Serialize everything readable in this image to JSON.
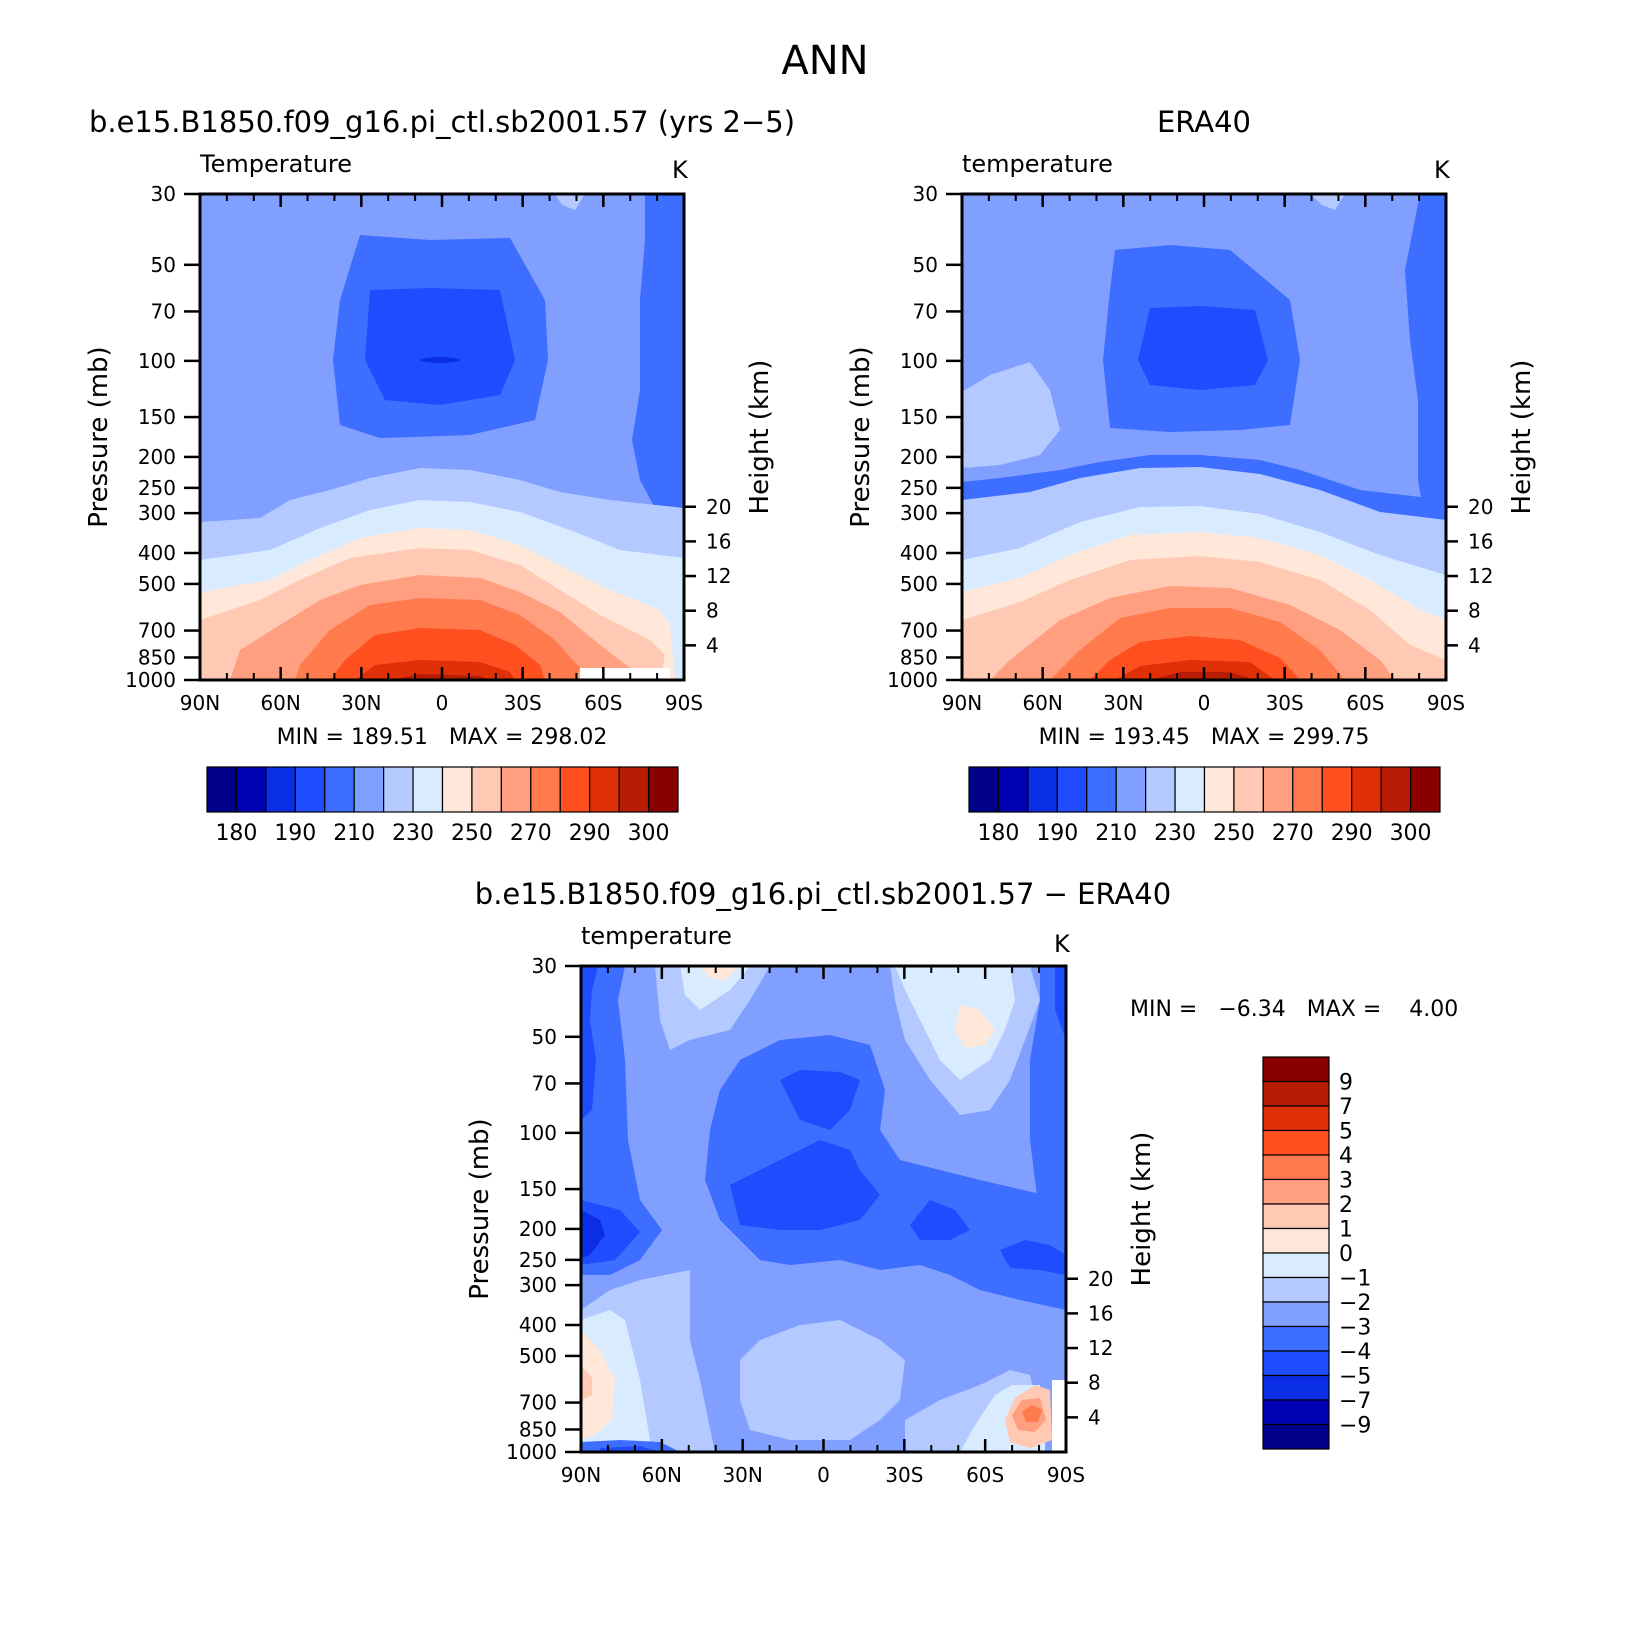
{
  "page": {
    "title": "ANN"
  },
  "colors": {
    "abs_scale": [
      "#00008a",
      "#0000b4",
      "#0a2ee6",
      "#1f4cff",
      "#3d6eff",
      "#809fff",
      "#b3c9ff",
      "#d9ebff",
      "#ffe8d9",
      "#ffc9b3",
      "#ff9f80",
      "#ff7a4d",
      "#ff4f1f",
      "#e03008",
      "#b81c05",
      "#8a0000"
    ],
    "diff_scale": [
      "#00008a",
      "#0000b4",
      "#0a2ee6",
      "#1f4cff",
      "#3d6eff",
      "#809fff",
      "#b3c9ff",
      "#d9ebff",
      "#ffe8d9",
      "#ffc9b3",
      "#ff9f80",
      "#ff7a4d",
      "#ff4f1f",
      "#e03008",
      "#b81c05",
      "#8a0000"
    ]
  },
  "chart_data": [
    {
      "type": "heatmap",
      "title": "b.e15.B1850.f09_g16.pi_ctl.sb2001.57 (yrs 2−5)",
      "left_label": "Temperature",
      "units": "K",
      "ylabel": "Pressure (mb)",
      "y2label": "Height (km)",
      "x_ticks": [
        "90N",
        "60N",
        "30N",
        "0",
        "30S",
        "60S",
        "90S"
      ],
      "y_ticks": [
        "30",
        "50",
        "70",
        "100",
        "150",
        "200",
        "250",
        "300",
        "400",
        "500",
        "700",
        "850",
        "1000"
      ],
      "y2_ticks": [
        "20",
        "16",
        "12",
        "8",
        "4"
      ],
      "min": "189.51",
      "max": "298.02",
      "stats_text": "MIN = 189.51   MAX = 298.02",
      "colorbar_labels": [
        "180",
        "190",
        "210",
        "230",
        "250",
        "270",
        "290",
        "300"
      ]
    },
    {
      "type": "heatmap",
      "title": "ERA40",
      "left_label": "temperature",
      "units": "K",
      "ylabel": "Pressure (mb)",
      "y2label": "Height (km)",
      "x_ticks": [
        "90N",
        "60N",
        "30N",
        "0",
        "30S",
        "60S",
        "90S"
      ],
      "y_ticks": [
        "30",
        "50",
        "70",
        "100",
        "150",
        "200",
        "250",
        "300",
        "400",
        "500",
        "700",
        "850",
        "1000"
      ],
      "y2_ticks": [
        "20",
        "16",
        "12",
        "8",
        "4"
      ],
      "min": "193.45",
      "max": "299.75",
      "stats_text": "MIN = 193.45   MAX = 299.75",
      "colorbar_labels": [
        "180",
        "190",
        "210",
        "230",
        "250",
        "270",
        "290",
        "300"
      ]
    },
    {
      "type": "heatmap",
      "title": "b.e15.B1850.f09_g16.pi_ctl.sb2001.57 − ERA40",
      "left_label": "temperature",
      "units": "K",
      "ylabel": "Pressure (mb)",
      "y2label": "Height (km)",
      "x_ticks": [
        "90N",
        "60N",
        "30N",
        "0",
        "30S",
        "60S",
        "90S"
      ],
      "y_ticks": [
        "30",
        "50",
        "70",
        "100",
        "150",
        "200",
        "250",
        "300",
        "400",
        "500",
        "700",
        "850",
        "1000"
      ],
      "y2_ticks": [
        "20",
        "16",
        "12",
        "8",
        "4"
      ],
      "min": "−6.34",
      "max": "4.00",
      "stats_text": "MIN =   −6.34   MAX =    4.00",
      "colorbar_labels": [
        "9",
        "7",
        "5",
        "4",
        "3",
        "2",
        "1",
        "0",
        "−1",
        "−2",
        "−3",
        "−4",
        "−5",
        "−7",
        "−9"
      ]
    }
  ]
}
